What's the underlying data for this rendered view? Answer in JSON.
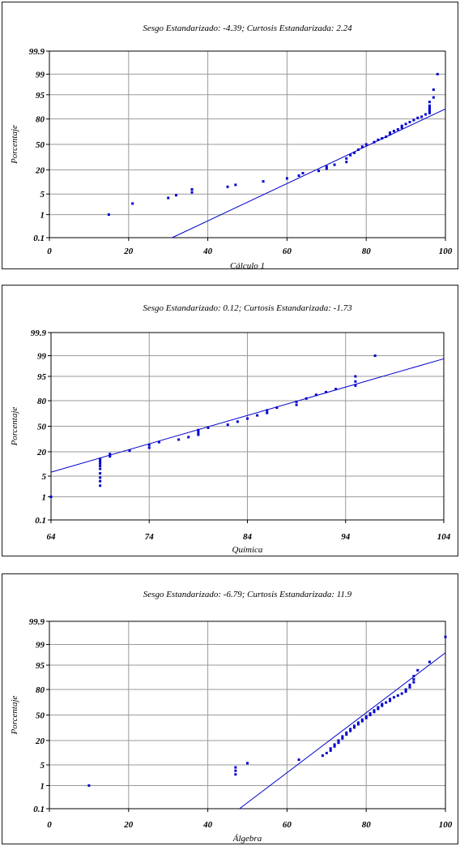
{
  "chart_data": [
    {
      "type": "scatter",
      "subtype": "normal-probability-plot",
      "title": "Sesgo Estandarizado: -4.39; Curtosis Estandarizada: 2.24",
      "xlabel": "Cálculo 1",
      "ylabel": "Porcentaje",
      "xlim": [
        0,
        100
      ],
      "x_ticks": [
        "0",
        "20",
        "40",
        "60",
        "80",
        "100"
      ],
      "y_ticks": [
        "0.1",
        "1",
        "5",
        "20",
        "50",
        "80",
        "95",
        "99",
        "99.9"
      ],
      "grid": true,
      "point_color": "#0000cc",
      "fit_line": {
        "x": [
          31,
          100
        ],
        "y": [
          0.1,
          88
        ]
      },
      "points": {
        "x": [
          15,
          21,
          30,
          32,
          36,
          36,
          45,
          47,
          54,
          60,
          63,
          64,
          68,
          70,
          70,
          72,
          75,
          75,
          76,
          77,
          78,
          79,
          80,
          82,
          83,
          84,
          85,
          86,
          86,
          87,
          88,
          89,
          89,
          90,
          91,
          92,
          93,
          94,
          95,
          96,
          96,
          96,
          96,
          96,
          96,
          96,
          97,
          97,
          98
        ],
        "y": [
          1,
          2.5,
          3.8,
          4.6,
          5.6,
          6.8,
          8,
          9,
          11,
          13,
          15,
          17,
          19,
          21,
          23,
          25,
          28,
          32,
          36,
          39,
          43,
          47,
          50,
          53,
          56,
          58,
          60,
          63,
          65,
          67,
          69,
          71,
          73,
          75,
          77,
          79,
          81,
          82,
          84,
          85,
          86,
          87,
          88,
          89,
          90,
          92,
          94,
          96.5,
          99
        ]
      }
    },
    {
      "type": "scatter",
      "subtype": "normal-probability-plot",
      "title": "Sesgo Estandarizado: 0.12; Curtosis Estandarizada: -1.73",
      "xlabel": "Química",
      "ylabel": "Porcentaje",
      "xlim": [
        64,
        104
      ],
      "x_ticks": [
        "64",
        "74",
        "84",
        "94",
        "104"
      ],
      "y_ticks": [
        "0.1",
        "1",
        "5",
        "20",
        "50",
        "80",
        "95",
        "99",
        "99.9"
      ],
      "grid": true,
      "point_color": "#0000cc",
      "fit_line": {
        "x": [
          64,
          104
        ],
        "y": [
          6.5,
          98.7
        ]
      },
      "points": {
        "x": [
          64,
          69,
          69,
          69,
          69,
          69,
          69,
          69,
          69,
          69,
          70,
          70,
          72,
          74,
          74,
          75,
          77,
          78,
          79,
          79,
          79,
          80,
          82,
          83,
          84,
          85,
          86,
          86,
          87,
          89,
          89,
          90,
          91,
          92,
          93,
          95,
          95,
          95,
          97
        ],
        "y": [
          1,
          2.5,
          3.5,
          4.5,
          6,
          8,
          9.5,
          11,
          12.5,
          14,
          16,
          18,
          21,
          24,
          27,
          30,
          33,
          36,
          39,
          42,
          45,
          48,
          52,
          56,
          60,
          64,
          67,
          70,
          73,
          76,
          79,
          82,
          85,
          87,
          89,
          91,
          93,
          95,
          99
        ]
      }
    },
    {
      "type": "scatter",
      "subtype": "normal-probability-plot",
      "title": "Sesgo Estandarizado: -6.79; Curtosis Estandarizada: 11.9",
      "xlabel": "Álgebra",
      "ylabel": "Porcentaje",
      "xlim": [
        0,
        100
      ],
      "x_ticks": [
        "0",
        "20",
        "40",
        "60",
        "80",
        "100"
      ],
      "y_ticks": [
        "0.1",
        "1",
        "5",
        "20",
        "50",
        "80",
        "95",
        "99",
        "99.9"
      ],
      "grid": true,
      "point_color": "#0000cc",
      "fit_line": {
        "x": [
          48,
          100
        ],
        "y": [
          0.1,
          98
        ]
      },
      "points": {
        "x": [
          10,
          47,
          47,
          47,
          50,
          63,
          69,
          70,
          71,
          71,
          72,
          72,
          73,
          73,
          74,
          74,
          75,
          75,
          76,
          76,
          77,
          77,
          78,
          78,
          79,
          79,
          80,
          80,
          81,
          81,
          82,
          82,
          83,
          83,
          84,
          84,
          85,
          86,
          86,
          87,
          88,
          89,
          90,
          90,
          91,
          91,
          92,
          92,
          92,
          93,
          96,
          100
        ],
        "y": [
          1,
          2.5,
          3.3,
          4.2,
          5.6,
          7,
          9,
          10.5,
          12,
          13.5,
          15,
          16.5,
          18,
          20,
          22,
          24,
          26,
          28,
          30,
          32,
          34,
          36,
          38,
          40,
          42,
          44,
          46,
          48,
          50,
          52,
          54,
          56,
          58,
          60,
          62,
          64,
          66,
          68,
          70,
          72,
          74,
          76,
          78,
          80,
          82,
          84,
          86,
          88,
          90,
          93,
          96,
          99.5
        ]
      }
    }
  ]
}
